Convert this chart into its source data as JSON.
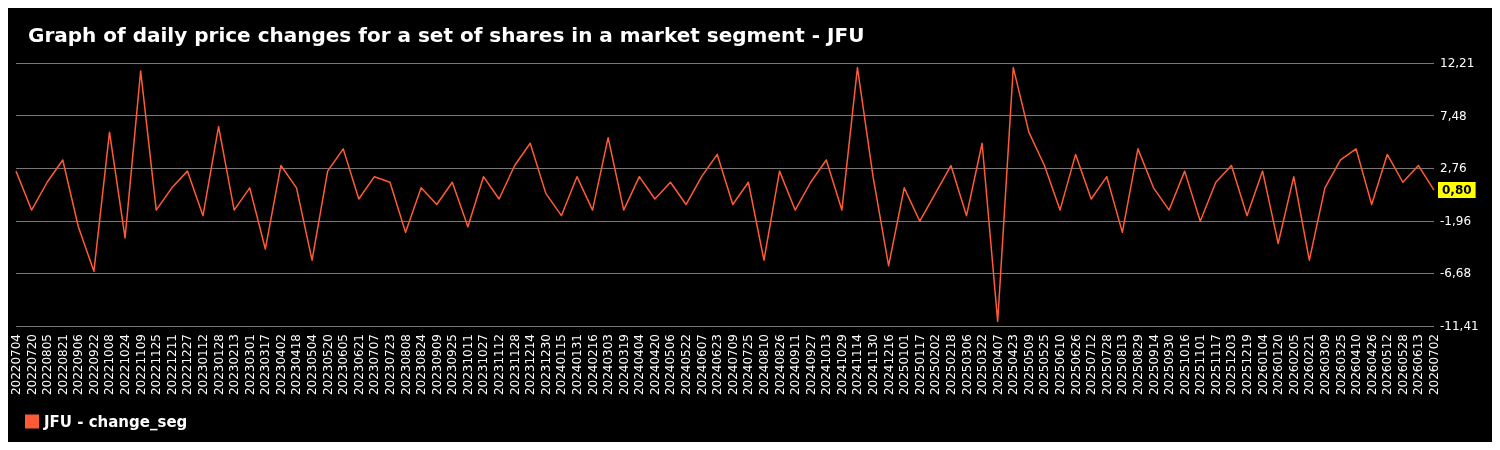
{
  "chart_data": {
    "type": "line",
    "title": "Graph of daily price changes for a set of shares in a market segment - JFU",
    "categories": [
      "20220704",
      "20220720",
      "20220805",
      "20220821",
      "20220906",
      "20220922",
      "20221008",
      "20221024",
      "20221109",
      "20221125",
      "20221211",
      "20221227",
      "20230112",
      "20230128",
      "20230213",
      "20230301",
      "20230317",
      "20230402",
      "20230418",
      "20230504",
      "20230520",
      "20230605",
      "20230621",
      "20230707",
      "20230723",
      "20230808",
      "20230824",
      "20230909",
      "20230925",
      "20231011",
      "20231027",
      "20231112",
      "20231128",
      "20231214",
      "20231230",
      "20240115",
      "20240131",
      "20240216",
      "20240303",
      "20240319",
      "20240404",
      "20240420",
      "20240506",
      "20240522",
      "20240607",
      "20240623",
      "20240709",
      "20240725",
      "20240810",
      "20240826",
      "20240911",
      "20240927",
      "20241013",
      "20241029",
      "20241114",
      "20241130",
      "20241216",
      "20250101",
      "20250117",
      "20250202",
      "20250218",
      "20250306",
      "20250322",
      "20250407",
      "20250423",
      "20250509",
      "20250525",
      "20250610",
      "20250626",
      "20250712",
      "20250728",
      "20250813",
      "20250829",
      "20250914",
      "20250930",
      "20251016",
      "20251101",
      "20251117",
      "20251203",
      "20251219",
      "20260104",
      "20260120",
      "20260205",
      "20260221",
      "20260309",
      "20260325",
      "20260410",
      "20260426",
      "20260512",
      "20260528",
      "20260613",
      "20260702"
    ],
    "series": [
      {
        "name": "JFU - change_seg",
        "color": "#ff5a36",
        "values": [
          2.5,
          -1,
          1.5,
          3.5,
          -2.5,
          -6.5,
          6,
          -3.5,
          11.5,
          -1,
          1,
          2.5,
          -1.5,
          6.5,
          -1,
          1,
          -4.5,
          3,
          1,
          -5.5,
          2.5,
          4.5,
          0,
          2,
          1.5,
          -3,
          1,
          -0.5,
          1.5,
          -2.5,
          2,
          0,
          3,
          5,
          0.5,
          -1.5,
          2,
          -1,
          5.5,
          -1,
          2,
          0,
          1.5,
          -0.5,
          2,
          4,
          -0.5,
          1.5,
          -5.5,
          2.5,
          -1,
          1.5,
          3.5,
          -1,
          11.8,
          2,
          -6,
          1,
          -2,
          0.5,
          3,
          -1.5,
          5,
          -11,
          11.8,
          6,
          3,
          -1,
          4,
          0,
          2,
          -3,
          4.5,
          1,
          -1,
          2.5,
          -2,
          1.5,
          3,
          -1.5,
          2.5,
          -4,
          2,
          -5.5,
          1,
          3.5,
          4.5,
          -0.5,
          4,
          1.5,
          3,
          0.8
        ]
      }
    ],
    "ylim": [
      -11.41,
      12.21
    ],
    "yticks": [
      {
        "value": -11.41,
        "label": "-11,41"
      },
      {
        "value": -6.68,
        "label": "-6,68"
      },
      {
        "value": -1.96,
        "label": "-1,96"
      },
      {
        "value": 2.76,
        "label": "2,76"
      },
      {
        "value": 7.48,
        "label": "7,48"
      },
      {
        "value": 12.21,
        "label": "12,21"
      }
    ],
    "grid": "y",
    "legend": "bottom left",
    "marker": "none",
    "line_style": "solid",
    "annotations": [
      {
        "text": "0,80",
        "x": "20260702",
        "y": 0.8
      }
    ]
  }
}
